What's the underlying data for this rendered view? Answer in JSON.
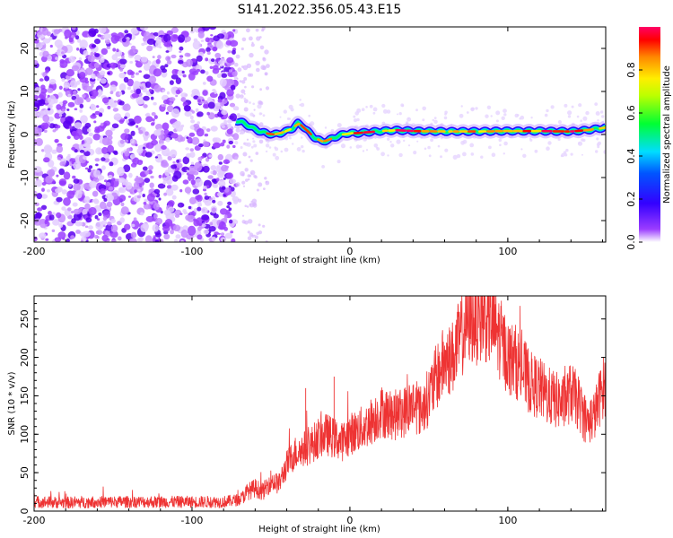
{
  "title": "S141.2022.356.05.43.E15",
  "chart_data": [
    {
      "type": "heatmap",
      "xlabel": "Height of straight line (km)",
      "ylabel": "Frequency (Hz)",
      "xlim": [
        -200,
        162
      ],
      "ylim": [
        -25,
        25
      ],
      "xticks": [
        -200,
        -100,
        0,
        100
      ],
      "yticks": [
        -20,
        -10,
        0,
        10,
        20
      ],
      "colorbar": {
        "label": "Normalized spectral amplitude",
        "ticks": [
          0.0,
          0.2,
          0.4,
          0.6,
          0.8
        ],
        "range": [
          0,
          1
        ],
        "colors": [
          "#ffffff",
          "#7f00ff",
          "#0000ff",
          "#00ffff",
          "#00ff00",
          "#ffff00",
          "#ff8000",
          "#ff0000",
          "#ff0080"
        ]
      },
      "noise_region_x": [
        -200,
        -72
      ],
      "ridge": {
        "x": [
          -72,
          -68,
          -64,
          -60,
          -56,
          -52,
          -48,
          -44,
          -40,
          -36,
          -33,
          -30,
          -26,
          -22,
          -18,
          -14,
          -10,
          -6,
          -3,
          0,
          5,
          10,
          20,
          30,
          40,
          60,
          80,
          100,
          120,
          140,
          150,
          162
        ],
        "y": [
          3.2,
          2.8,
          2.0,
          1.2,
          0.6,
          0.2,
          0.0,
          0.3,
          0.8,
          1.5,
          2.6,
          2.0,
          0.5,
          -0.8,
          -1.6,
          -1.4,
          -0.7,
          -0.2,
          0.2,
          0.3,
          0.3,
          0.5,
          0.8,
          1.0,
          0.8,
          0.7,
          0.7,
          0.8,
          0.8,
          0.7,
          1.0,
          1.6
        ],
        "amplitude": [
          0.45,
          0.5,
          0.45,
          0.4,
          0.55,
          0.7,
          0.8,
          0.6,
          0.55,
          0.5,
          0.75,
          0.65,
          0.55,
          0.6,
          0.7,
          0.6,
          0.5,
          0.55,
          0.6,
          0.85,
          0.8,
          0.75,
          0.55,
          0.85,
          0.85,
          0.7,
          0.65,
          0.75,
          0.75,
          0.9,
          0.6,
          0.55
        ]
      }
    },
    {
      "type": "line",
      "xlabel": "Height of straight line (km)",
      "ylabel": "SNR (10 * v/v)",
      "xlim": [
        -200,
        162
      ],
      "ylim": [
        0,
        280
      ],
      "xticks": [
        -200,
        -100,
        0,
        100
      ],
      "yticks": [
        0,
        50,
        100,
        150,
        200,
        250
      ],
      "color": "#ee3333",
      "series": [
        {
          "x": [
            -200,
            -180,
            -160,
            -140,
            -120,
            -100,
            -80,
            -70,
            -65,
            -60,
            -55,
            -50,
            -45,
            -40,
            -35,
            -30,
            -25,
            -20,
            -15,
            -10,
            -5,
            0,
            5,
            10,
            15,
            20,
            25,
            30,
            35,
            40,
            45,
            50,
            55,
            60,
            65,
            70,
            75,
            80,
            85,
            90,
            95,
            100,
            105,
            110,
            115,
            120,
            125,
            130,
            135,
            140,
            145,
            150,
            155,
            160,
            162
          ],
          "values": [
            12,
            11,
            12,
            12,
            12,
            12,
            12,
            15,
            25,
            30,
            25,
            40,
            35,
            60,
            75,
            80,
            85,
            95,
            100,
            95,
            90,
            100,
            105,
            110,
            120,
            130,
            125,
            125,
            130,
            140,
            130,
            150,
            175,
            195,
            200,
            225,
            250,
            250,
            255,
            245,
            225,
            200,
            195,
            180,
            165,
            160,
            150,
            145,
            140,
            155,
            140,
            115,
            125,
            160,
            165
          ]
        }
      ],
      "spikes": [
        {
          "x": -28,
          "y": 160
        },
        {
          "x": -10,
          "y": 175
        },
        {
          "x": 23,
          "y": 155
        },
        {
          "x": 85,
          "y": 276
        }
      ]
    }
  ]
}
